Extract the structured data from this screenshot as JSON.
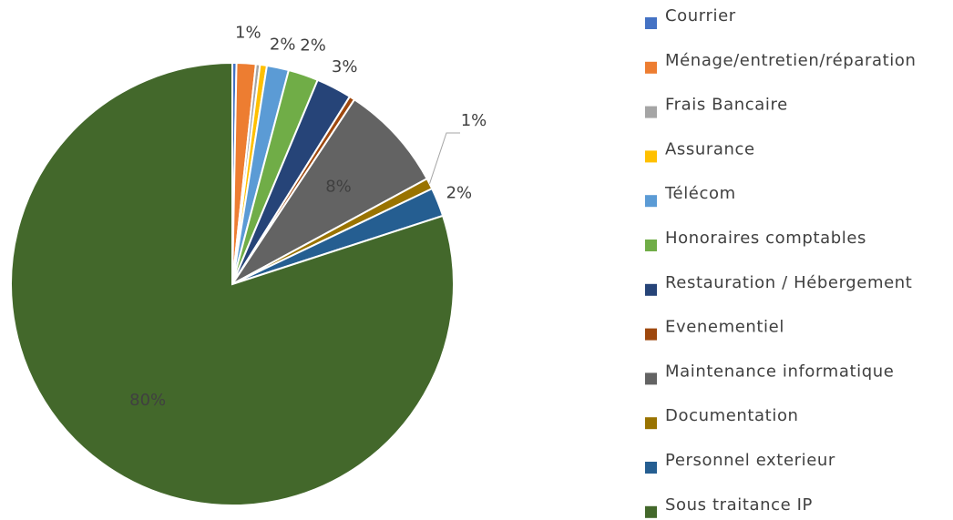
{
  "chart_data": {
    "type": "pie",
    "categories": [
      "Courrier",
      "Ménage/entretien/réparation",
      "Frais Bancaire",
      "Assurance",
      "Télécom",
      "Honoraires comptables",
      "Restauration / Hébergement",
      "Evenementiel",
      "Maintenance informatique",
      "Documentation",
      "Personnel exterieur",
      "Sous traitance IP"
    ],
    "values": [
      0.3,
      1.4,
      0.3,
      0.5,
      1.6,
      2.2,
      2.6,
      0.4,
      7.8,
      0.8,
      2.1,
      80.0
    ],
    "value_labels": [
      null,
      "1%",
      null,
      null,
      "2%",
      "2%",
      "3%",
      null,
      "8%",
      "1%",
      "2%",
      "80%"
    ],
    "colors": [
      "#4472c4",
      "#ed7d31",
      "#a5a5a5",
      "#ffc000",
      "#5b9bd5",
      "#70ad47",
      "#264478",
      "#9e480e",
      "#636363",
      "#997300",
      "#255e91",
      "#43682b"
    ],
    "legend": "right"
  }
}
